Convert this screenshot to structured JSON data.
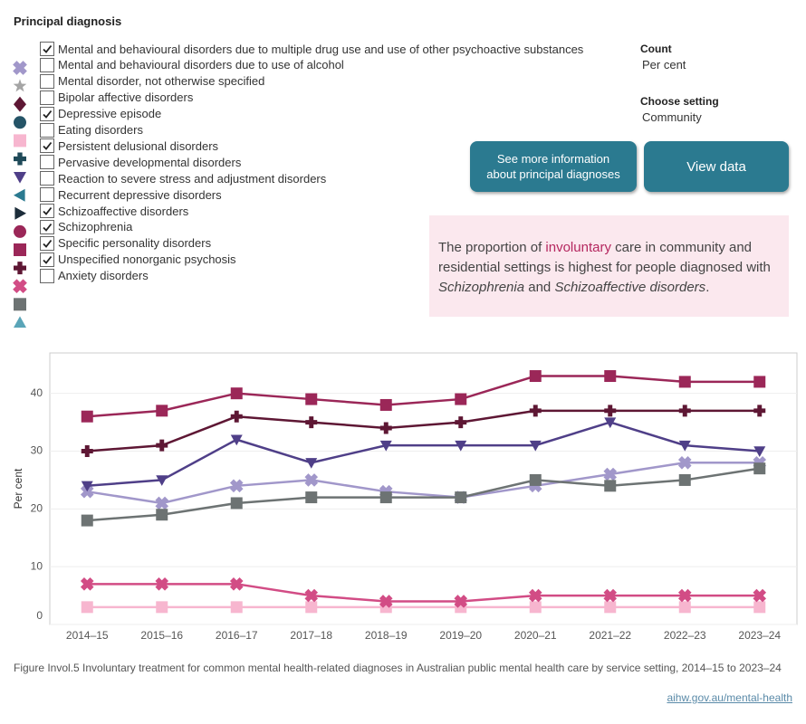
{
  "filter_title": "Principal diagnosis",
  "count": {
    "label": "Count",
    "value": "Per cent"
  },
  "setting": {
    "label": "Choose setting",
    "value": "Community"
  },
  "buttons": [
    "See more information about principal diagnoses",
    "View data"
  ],
  "callout": [
    {
      "text": "The proportion of "
    },
    {
      "text": "involuntary",
      "style": "highlight"
    },
    {
      "text": " care in community and residential settings is highest for people diagnosed with "
    },
    {
      "text": "Schizophrenia",
      "style": "italic"
    },
    {
      "text": " and "
    },
    {
      "text": "Schizoaffective disorders",
      "style": "italic"
    },
    {
      "text": "."
    }
  ],
  "caption": "Figure Invol.5 Involuntary treatment for common mental health-related diagnoses in Australian public mental health care by service setting, 2014–15 to 2023–24",
  "link": "aihw.gov.au/mental-health",
  "chart_data": {
    "type": "line",
    "y_label": "Per cent",
    "categories": [
      "2014–15",
      "2015–16",
      "2016–17",
      "2017–18",
      "2018–19",
      "2019–20",
      "2020–21",
      "2021–22",
      "2022–23",
      "2023–24"
    ],
    "ylim": [
      0,
      47
    ],
    "yticks": [
      0,
      10,
      20,
      30,
      40
    ],
    "grid": true,
    "series": [
      {
        "name": "Mental and behavioural disorders due to multiple drug use and use of other psychoactive substances",
        "checked": true,
        "marker": "x",
        "color": "#a197ca",
        "values": [
          23,
          21,
          24,
          25,
          23,
          22,
          24,
          26,
          28,
          28
        ]
      },
      {
        "name": "Mental and behavioural disorders due to use of alcohol",
        "checked": false,
        "marker": "star",
        "color": "#a5a5a5"
      },
      {
        "name": "Mental disorder, not otherwise specified",
        "checked": false,
        "marker": "diamond",
        "color": "#5e1734"
      },
      {
        "name": "Bipolar affective disorders",
        "checked": false,
        "marker": "circle",
        "color": "#255467"
      },
      {
        "name": "Depressive episode",
        "checked": true,
        "marker": "square",
        "color": "#f7b6cf",
        "values": [
          3,
          3,
          3,
          3,
          3,
          3,
          3,
          3,
          3,
          3
        ]
      },
      {
        "name": "Eating disorders",
        "checked": false,
        "marker": "plus",
        "color": "#1f4a59"
      },
      {
        "name": "Persistent delusional disorders",
        "checked": true,
        "marker": "triangle-down",
        "color": "#4f3f88",
        "values": [
          24,
          25,
          32,
          28,
          31,
          31,
          31,
          35,
          31,
          30
        ]
      },
      {
        "name": "Pervasive developmental disorders",
        "checked": false,
        "marker": "triangle-left",
        "color": "#2b7a90"
      },
      {
        "name": "Reaction to severe stress and adjustment disorders",
        "checked": false,
        "marker": "triangle-right",
        "color": "#1c2d3a"
      },
      {
        "name": "Recurrent depressive disorders",
        "checked": false,
        "marker": "circle",
        "color": "#9b2758"
      },
      {
        "name": "Schizoaffective disorders",
        "checked": true,
        "marker": "square",
        "color": "#9b2758",
        "values": [
          36,
          37,
          40,
          39,
          38,
          39,
          43,
          43,
          42,
          42
        ]
      },
      {
        "name": "Schizophrenia",
        "checked": true,
        "marker": "plus",
        "color": "#5e1734",
        "values": [
          30,
          31,
          36,
          35,
          34,
          35,
          37,
          37,
          37,
          37
        ]
      },
      {
        "name": "Specific personality disorders",
        "checked": true,
        "marker": "x",
        "color": "#d24c85",
        "values": [
          7,
          7,
          7,
          5,
          4,
          4,
          5,
          5,
          5,
          5
        ]
      },
      {
        "name": "Unspecified nonorganic psychosis",
        "checked": true,
        "marker": "square",
        "color": "#6d7373",
        "values": [
          18,
          19,
          21,
          22,
          22,
          22,
          25,
          24,
          25,
          27
        ]
      },
      {
        "name": "Anxiety disorders",
        "checked": false,
        "marker": "triangle-up",
        "color": "#5aa5b8"
      }
    ]
  }
}
